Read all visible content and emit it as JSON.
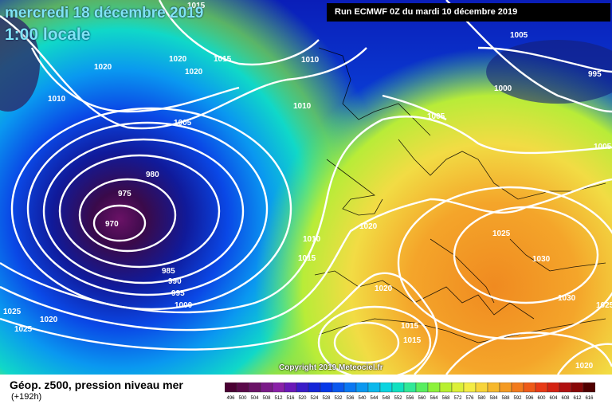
{
  "header": {
    "date": "mercredi 18 décembre 2019",
    "time": "1:00 locale",
    "run": "Run ECMWF 0Z du mardi 10 décembre 2019"
  },
  "map": {
    "isobar_labels": [
      "1015",
      "1010",
      "1020",
      "1020",
      "1015",
      "1010",
      "1020",
      "1010",
      "1010",
      "1005",
      "1005",
      "1005",
      "1005",
      "1000",
      "995",
      "980",
      "975",
      "970",
      "985",
      "990",
      "995",
      "1000",
      "1010",
      "1015",
      "1020",
      "1025",
      "1025",
      "1030",
      "1020",
      "1030",
      "1015",
      "1015",
      "1020",
      "1025",
      "1020",
      "1025"
    ],
    "copyright": "Copyright 2019 Meteociel.fr"
  },
  "legend": {
    "title": "Géop. z500, pression niveau mer",
    "subtitle": "(+192h)",
    "scale_values": [
      "496",
      "500",
      "504",
      "508",
      "512",
      "516",
      "520",
      "524",
      "528",
      "532",
      "536",
      "540",
      "544",
      "548",
      "552",
      "556",
      "560",
      "564",
      "568",
      "572",
      "576",
      "580",
      "584",
      "588",
      "592",
      "596",
      "600",
      "604",
      "608",
      "612",
      "616"
    ],
    "scale_colors": [
      "#4a0033",
      "#5a0a4a",
      "#6a1266",
      "#7a1a88",
      "#8a20a8",
      "#6a18b8",
      "#3a1cc8",
      "#1424d8",
      "#0638e8",
      "#0a58ee",
      "#0a78f2",
      "#0a98f0",
      "#0ab8ec",
      "#0ad4e0",
      "#10e0c0",
      "#30e898",
      "#58ee60",
      "#8cf23a",
      "#b8f030",
      "#dcf038",
      "#f4ec44",
      "#f8d43a",
      "#f6b82c",
      "#f49a22",
      "#f27a1c",
      "#ee5a18",
      "#e83a16",
      "#d42212",
      "#b01010",
      "#880808",
      "#500000"
    ]
  }
}
